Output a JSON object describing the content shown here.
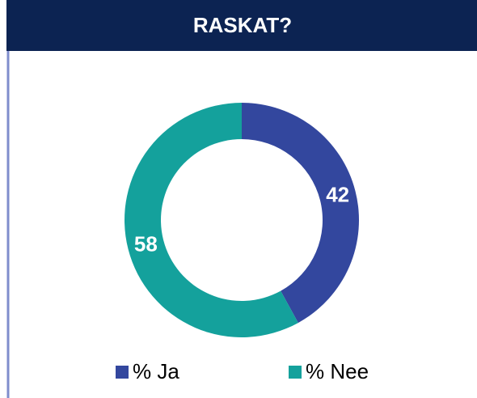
{
  "chart_data": {
    "type": "donut",
    "title": "RASKAT?",
    "categories": [
      "% Ja",
      "% Nee"
    ],
    "values": [
      42,
      58
    ],
    "colors": [
      "#33479e",
      "#14a19c"
    ],
    "legend": "bottom"
  }
}
